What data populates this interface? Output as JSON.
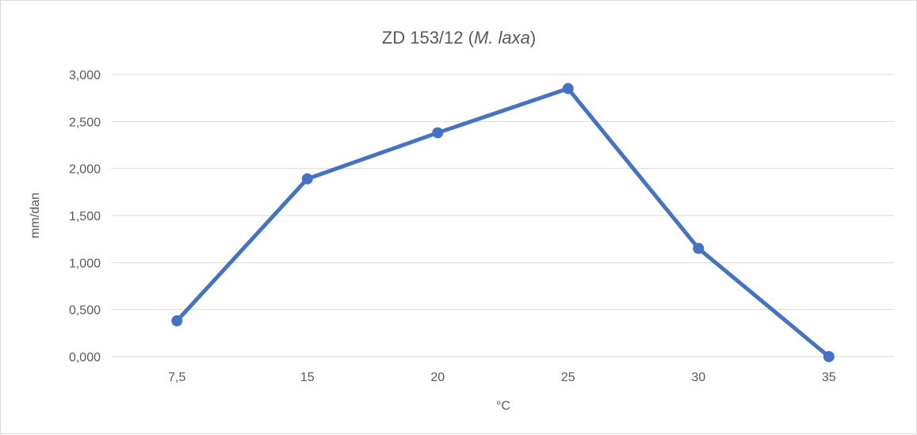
{
  "chart_data": {
    "type": "line",
    "title": "ZD 153/12 (M. laxa)",
    "title_prefix": "ZD 153/12 (",
    "title_italic": "M. laxa",
    "title_suffix": ")",
    "xlabel": "°C",
    "ylabel": "mm/dan",
    "categories": [
      "7,5",
      "15",
      "20",
      "25",
      "30",
      "35"
    ],
    "series": [
      {
        "values": [
          0.38,
          1.89,
          2.38,
          2.85,
          1.15,
          0.0
        ]
      }
    ],
    "ylim": [
      0,
      3
    ],
    "yticks": [
      "0,000",
      "0,500",
      "1,000",
      "1,500",
      "2,000",
      "2,500",
      "3,000"
    ],
    "grid": true,
    "legend": "none",
    "colors": {
      "line": "#4472C4",
      "grid": "#d9d9d9",
      "text": "#595959"
    }
  }
}
